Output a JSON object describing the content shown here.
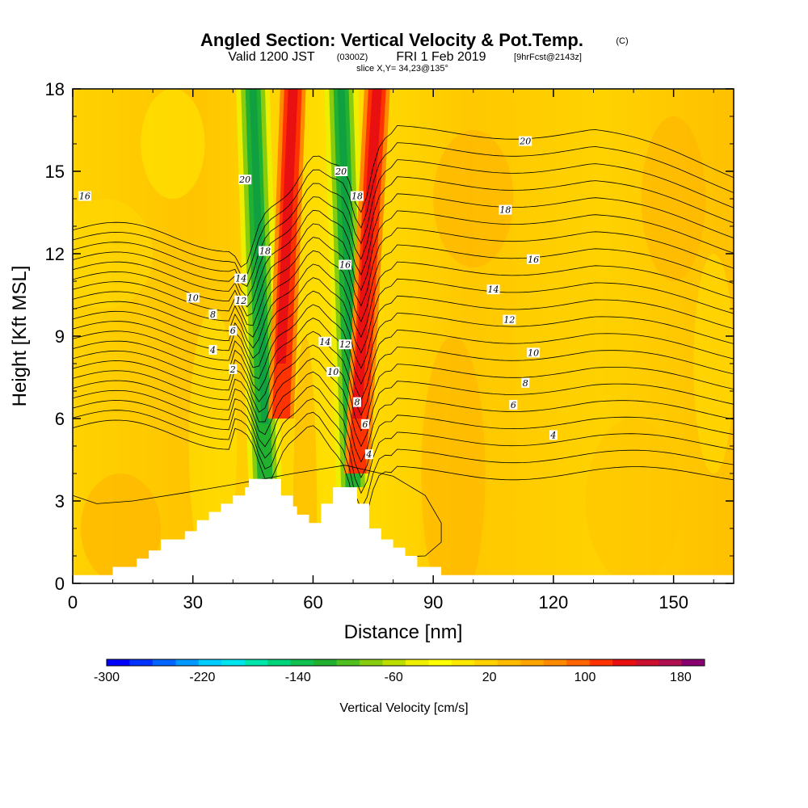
{
  "title": "Angled Section: Vertical Velocity & Pot.Temp.",
  "title_unit": "(C)",
  "subtitle_valid": "Valid 1200 JST",
  "subtitle_utc": "(0300Z)",
  "subtitle_date": "FRI 1 Feb 2019",
  "subtitle_fcst": "[9hrFcst@2143z]",
  "slice_info": "slice X,Y= 34,23@135°",
  "chart_data": {
    "type": "heatmap",
    "xlabel": "Distance [nm]",
    "ylabel": "Height [Kft MSL]",
    "xlim": [
      0,
      165
    ],
    "ylim": [
      0,
      18
    ],
    "x_ticks": [
      0,
      30,
      60,
      90,
      120,
      150
    ],
    "y_ticks": [
      0,
      3,
      6,
      9,
      12,
      15,
      18
    ],
    "colorbar": {
      "label": "Vertical Velocity [cm/s]",
      "range": [
        -300,
        200
      ],
      "step": 20,
      "tick_labels": [
        -300,
        -220,
        -140,
        -60,
        20,
        100,
        180
      ],
      "colors": [
        "#0000ff",
        "#0033ff",
        "#0066ff",
        "#0099ff",
        "#00ccff",
        "#00e5ee",
        "#00e5aa",
        "#00d47a",
        "#10c050",
        "#22b030",
        "#50bf20",
        "#88cc10",
        "#bbdd00",
        "#eeee00",
        "#ffff00",
        "#ffe800",
        "#ffd200",
        "#ffbb00",
        "#ffa500",
        "#ff8a00",
        "#ff6600",
        "#ff3300",
        "#e81010",
        "#cc1030",
        "#b01050",
        "#880070"
      ]
    },
    "updraft_bands": [
      {
        "x_bottom": 52,
        "x_top": 55,
        "y_from": 6,
        "y_to": 18,
        "peak_cm_s": 120
      },
      {
        "x_bottom": 71,
        "x_top": 76,
        "y_from": 4,
        "y_to": 18,
        "peak_cm_s": 120
      }
    ],
    "downdraft_bands": [
      {
        "x_bottom": 48,
        "x_top": 45,
        "y_from": 3.8,
        "y_to": 18,
        "min_cm_s": -140
      },
      {
        "x_bottom": 70,
        "x_top": 67,
        "y_from": 3.5,
        "y_to": 18,
        "min_cm_s": -140
      }
    ],
    "potential_temperature_contours": [
      {
        "value": 2,
        "label_pos": [
          40,
          7.8
        ]
      },
      {
        "value": 4,
        "label_pos": [
          35,
          8.5
        ],
        "label_pos_2": [
          120,
          5.4
        ],
        "label_pos_3": [
          74,
          4.7
        ]
      },
      {
        "value": 6,
        "label_pos": [
          40,
          9.2
        ],
        "label_pos_2": [
          110,
          6.5
        ],
        "label_pos_3": [
          73,
          5.8
        ]
      },
      {
        "value": 8,
        "label_pos": [
          35,
          9.8
        ],
        "label_pos_2": [
          113,
          7.3
        ],
        "label_pos_3": [
          71,
          6.6
        ]
      },
      {
        "value": 10,
        "label_pos": [
          30,
          10.4
        ],
        "label_pos_2": [
          115,
          8.4
        ],
        "label_pos_3": [
          65,
          7.7
        ]
      },
      {
        "value": 12,
        "label_pos": [
          42,
          10.3
        ],
        "label_pos_2": [
          109,
          9.6
        ],
        "label_pos_3": [
          68,
          8.7
        ]
      },
      {
        "value": 14,
        "label_pos": [
          42,
          11.1
        ],
        "label_pos_2": [
          105,
          10.7
        ],
        "label_pos_3": [
          63,
          8.8
        ]
      },
      {
        "value": 16,
        "label_pos": [
          3,
          14.1
        ],
        "label_pos_2": [
          115,
          11.8
        ],
        "label_pos_3": [
          68,
          11.6
        ]
      },
      {
        "value": 18,
        "label_pos": [
          48,
          12.1
        ],
        "label_pos_2": [
          108,
          13.6
        ],
        "label_pos_3": [
          71,
          14.1
        ]
      },
      {
        "value": 20,
        "label_pos": [
          43,
          14.7
        ],
        "label_pos_2": [
          113,
          16.1
        ],
        "label_pos_3": [
          67,
          15.0
        ]
      }
    ],
    "terrain": [
      [
        0,
        0.3
      ],
      [
        10,
        0.3
      ],
      [
        10,
        0.6
      ],
      [
        16,
        0.6
      ],
      [
        16,
        0.9
      ],
      [
        19,
        0.9
      ],
      [
        19,
        1.2
      ],
      [
        22,
        1.2
      ],
      [
        22,
        1.6
      ],
      [
        28,
        1.6
      ],
      [
        28,
        1.9
      ],
      [
        31,
        1.9
      ],
      [
        31,
        2.3
      ],
      [
        34,
        2.3
      ],
      [
        34,
        2.6
      ],
      [
        37,
        2.6
      ],
      [
        37,
        2.9
      ],
      [
        40,
        2.9
      ],
      [
        40,
        3.2
      ],
      [
        43,
        3.2
      ],
      [
        43,
        3.5
      ],
      [
        44,
        3.5
      ],
      [
        44,
        3.8
      ],
      [
        52,
        3.8
      ],
      [
        52,
        3.2
      ],
      [
        55,
        3.2
      ],
      [
        55,
        2.8
      ],
      [
        56,
        2.8
      ],
      [
        56,
        2.5
      ],
      [
        59,
        2.5
      ],
      [
        59,
        2.2
      ],
      [
        62,
        2.2
      ],
      [
        62,
        2.9
      ],
      [
        65,
        2.9
      ],
      [
        65,
        3.5
      ],
      [
        71,
        3.5
      ],
      [
        71,
        2.9
      ],
      [
        74,
        2.9
      ],
      [
        74,
        2.0
      ],
      [
        77,
        2.0
      ],
      [
        77,
        1.6
      ],
      [
        80,
        1.6
      ],
      [
        80,
        1.3
      ],
      [
        83,
        1.3
      ],
      [
        83,
        1.0
      ],
      [
        86,
        1.0
      ],
      [
        86,
        0.6
      ],
      [
        92,
        0.6
      ],
      [
        92,
        0.3
      ],
      [
        165,
        0.3
      ]
    ]
  }
}
